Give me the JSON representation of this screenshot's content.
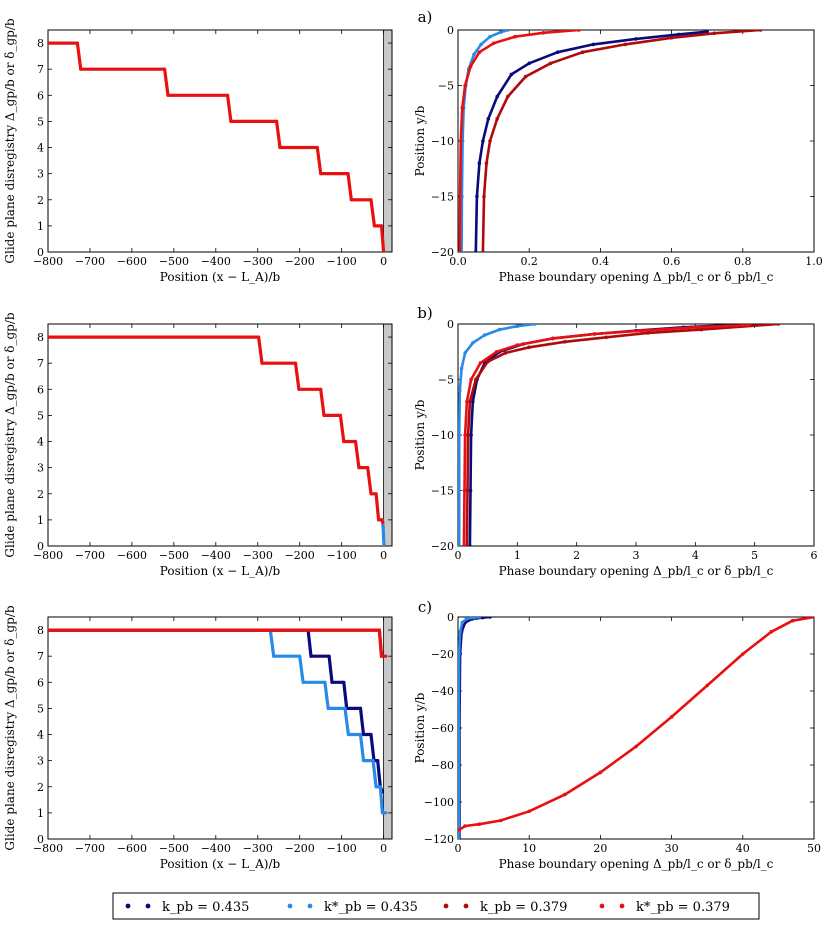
{
  "figure": {
    "panel_labels": [
      "a)",
      "b)",
      "c)"
    ],
    "left_xlabel": "Position (x − L_A)/b",
    "left_ylabel": "Glide plane disregistry Δ_gp/b or δ_gp/b",
    "right_xlabel": "Phase boundary opening Δ_pb/l_c or δ_pb/l_c",
    "right_ylabel": "Position y/b"
  },
  "legend": {
    "entries": [
      {
        "label": "k_pb = 0.435",
        "color": "#0a0a7a"
      },
      {
        "label": "k*_pb = 0.435",
        "color": "#2a8ae8"
      },
      {
        "label": "k_pb = 0.379",
        "color": "#b00a0a"
      },
      {
        "label": "k*_pb = 0.379",
        "color": "#e81010"
      }
    ]
  },
  "colors": {
    "k_pb_0435": "#0a0a7a",
    "kstar_pb_0435": "#2a8ae8",
    "k_pb_0379": "#b00a0a",
    "kstar_pb_0379": "#e81010",
    "shaded_region": "#c8c8c8"
  },
  "chart_data": [
    {
      "id": "a-left",
      "type": "line",
      "panel": "a)",
      "xlabel": "Position (x − L_A)/b",
      "ylabel": "Glide plane disregistry Δ_gp/b or δ_gp/b",
      "xlim": [
        -800,
        20
      ],
      "ylim": [
        0,
        8.5
      ],
      "xticks": [
        -800,
        -700,
        -600,
        -500,
        -400,
        -300,
        -200,
        -100,
        0
      ],
      "yticks": [
        0,
        1,
        2,
        3,
        4,
        5,
        6,
        7,
        8
      ],
      "shaded_x": [
        0,
        20
      ],
      "series": [
        {
          "color": "#e81010",
          "points": [
            [
              -800,
              8
            ],
            [
              -730,
              8
            ],
            [
              -722,
              7
            ],
            [
              -522,
              7
            ],
            [
              -514,
              6
            ],
            [
              -372,
              6
            ],
            [
              -364,
              5
            ],
            [
              -255,
              5
            ],
            [
              -247,
              4
            ],
            [
              -158,
              4
            ],
            [
              -150,
              3
            ],
            [
              -85,
              3
            ],
            [
              -77,
              2
            ],
            [
              -30,
              2
            ],
            [
              -22,
              1
            ],
            [
              -5,
              1
            ],
            [
              0,
              0
            ]
          ]
        }
      ]
    },
    {
      "id": "a-right",
      "type": "scatter",
      "panel": "a)",
      "xlabel": "Phase boundary opening Δ_pb/l_c or δ_pb/l_c",
      "ylabel": "Position y/b",
      "xlim": [
        0,
        1.0
      ],
      "ylim": [
        -20,
        0
      ],
      "xticks": [
        0.0,
        0.2,
        0.4,
        0.6,
        0.8,
        1.0
      ],
      "yticks": [
        0,
        -5,
        -10,
        -15,
        -20
      ],
      "series": [
        {
          "color": "#0a0a7a",
          "points": [
            [
              0.05,
              -20
            ],
            [
              0.053,
              -15
            ],
            [
              0.06,
              -12
            ],
            [
              0.07,
              -10
            ],
            [
              0.085,
              -8
            ],
            [
              0.11,
              -6
            ],
            [
              0.15,
              -4
            ],
            [
              0.2,
              -3
            ],
            [
              0.28,
              -2
            ],
            [
              0.38,
              -1.3
            ],
            [
              0.5,
              -0.8
            ],
            [
              0.62,
              -0.4
            ],
            [
              0.7,
              -0.15
            ]
          ]
        },
        {
          "color": "#2a8ae8",
          "points": [
            [
              0.01,
              -20
            ],
            [
              0.011,
              -15
            ],
            [
              0.013,
              -10
            ],
            [
              0.016,
              -7
            ],
            [
              0.022,
              -5
            ],
            [
              0.03,
              -3.5
            ],
            [
              0.045,
              -2.2
            ],
            [
              0.065,
              -1.3
            ],
            [
              0.09,
              -0.6
            ],
            [
              0.12,
              -0.2
            ],
            [
              0.14,
              0
            ]
          ]
        },
        {
          "color": "#b00a0a",
          "points": [
            [
              0.07,
              -20
            ],
            [
              0.073,
              -15
            ],
            [
              0.08,
              -12
            ],
            [
              0.09,
              -10
            ],
            [
              0.11,
              -8
            ],
            [
              0.14,
              -6
            ],
            [
              0.19,
              -4.2
            ],
            [
              0.26,
              -3
            ],
            [
              0.35,
              -2
            ],
            [
              0.47,
              -1.3
            ],
            [
              0.6,
              -0.7
            ],
            [
              0.72,
              -0.3
            ],
            [
              0.85,
              0
            ]
          ]
        },
        {
          "color": "#e81010",
          "points": [
            [
              0.005,
              -20
            ],
            [
              0.006,
              -15
            ],
            [
              0.008,
              -10
            ],
            [
              0.012,
              -7
            ],
            [
              0.02,
              -5
            ],
            [
              0.035,
              -3.3
            ],
            [
              0.06,
              -2
            ],
            [
              0.1,
              -1.2
            ],
            [
              0.16,
              -0.6
            ],
            [
              0.24,
              -0.25
            ],
            [
              0.34,
              0
            ]
          ]
        }
      ]
    },
    {
      "id": "b-left",
      "type": "line",
      "panel": "b)",
      "xlabel": "Position (x − L_A)/b",
      "ylabel": "Glide plane disregistry Δ_gp/b or δ_gp/b",
      "xlim": [
        -800,
        20
      ],
      "ylim": [
        0,
        8.5
      ],
      "xticks": [
        -800,
        -700,
        -600,
        -500,
        -400,
        -300,
        -200,
        -100,
        0
      ],
      "yticks": [
        0,
        1,
        2,
        3,
        4,
        5,
        6,
        7,
        8
      ],
      "shaded_x": [
        0,
        20
      ],
      "series": [
        {
          "color": "#2a8ae8",
          "points": [
            [
              -3,
              1
            ],
            [
              -1,
              0.7
            ],
            [
              0,
              0.3
            ],
            [
              1,
              0.05
            ]
          ]
        },
        {
          "color": "#e81010",
          "points": [
            [
              -800,
              8
            ],
            [
              -298,
              8
            ],
            [
              -290,
              7
            ],
            [
              -210,
              7
            ],
            [
              -202,
              6
            ],
            [
              -150,
              6
            ],
            [
              -142,
              5
            ],
            [
              -103,
              5
            ],
            [
              -95,
              4
            ],
            [
              -67,
              4
            ],
            [
              -59,
              3
            ],
            [
              -38,
              3
            ],
            [
              -30,
              2
            ],
            [
              -18,
              2
            ],
            [
              -12,
              1
            ],
            [
              -4,
              1
            ],
            [
              -2,
              0.9
            ]
          ]
        }
      ]
    },
    {
      "id": "b-right",
      "type": "scatter",
      "panel": "b)",
      "xlabel": "Phase boundary opening Δ_pb/l_c or δ_pb/l_c",
      "ylabel": "Position y/b",
      "xlim": [
        0,
        6
      ],
      "ylim": [
        -20,
        0
      ],
      "xticks": [
        0,
        1,
        2,
        3,
        4,
        5,
        6
      ],
      "yticks": [
        0,
        -5,
        -10,
        -15,
        -20
      ],
      "series": [
        {
          "color": "#0a0a7a",
          "points": [
            [
              0.2,
              -20
            ],
            [
              0.21,
              -15
            ],
            [
              0.22,
              -10
            ],
            [
              0.25,
              -7
            ],
            [
              0.32,
              -5
            ],
            [
              0.45,
              -3.5
            ],
            [
              0.7,
              -2.5
            ],
            [
              1.1,
              -1.8
            ],
            [
              1.6,
              -1.3
            ],
            [
              2.3,
              -0.9
            ],
            [
              3.0,
              -0.6
            ],
            [
              3.8,
              -0.3
            ],
            [
              4.6,
              -0.1
            ]
          ]
        },
        {
          "color": "#2a8ae8",
          "points": [
            [
              0.02,
              -20
            ],
            [
              0.02,
              -10
            ],
            [
              0.03,
              -6
            ],
            [
              0.06,
              -4
            ],
            [
              0.12,
              -2.6
            ],
            [
              0.25,
              -1.7
            ],
            [
              0.45,
              -1
            ],
            [
              0.7,
              -0.5
            ],
            [
              1.0,
              -0.2
            ],
            [
              1.3,
              0
            ]
          ]
        },
        {
          "color": "#b00a0a",
          "points": [
            [
              0.15,
              -20
            ],
            [
              0.16,
              -15
            ],
            [
              0.17,
              -10
            ],
            [
              0.2,
              -7
            ],
            [
              0.3,
              -5
            ],
            [
              0.5,
              -3.4
            ],
            [
              0.8,
              -2.6
            ],
            [
              1.2,
              -2.1
            ],
            [
              1.8,
              -1.6
            ],
            [
              2.5,
              -1.2
            ],
            [
              3.2,
              -0.8
            ],
            [
              4.1,
              -0.5
            ],
            [
              5.4,
              0
            ]
          ]
        },
        {
          "color": "#e81010",
          "points": [
            [
              0.1,
              -20
            ],
            [
              0.11,
              -15
            ],
            [
              0.12,
              -10
            ],
            [
              0.15,
              -7
            ],
            [
              0.22,
              -5
            ],
            [
              0.38,
              -3.5
            ],
            [
              0.65,
              -2.5
            ],
            [
              1.0,
              -1.9
            ],
            [
              1.6,
              -1.3
            ],
            [
              2.3,
              -0.9
            ],
            [
              3.1,
              -0.6
            ],
            [
              4.0,
              -0.3
            ],
            [
              4.9,
              -0.1
            ]
          ]
        }
      ]
    },
    {
      "id": "c-left",
      "type": "line",
      "panel": "c)",
      "xlabel": "Position (x − L_A)/b",
      "ylabel": "Glide plane disregistry Δ_gp/b or δ_gp/b",
      "xlim": [
        -800,
        20
      ],
      "ylim": [
        0,
        8.5
      ],
      "xticks": [
        -800,
        -700,
        -600,
        -500,
        -400,
        -300,
        -200,
        -100,
        0
      ],
      "yticks": [
        0,
        1,
        2,
        3,
        4,
        5,
        6,
        7,
        8
      ],
      "shaded_x": [
        0,
        20
      ],
      "series": [
        {
          "color": "#0a0a7a",
          "points": [
            [
              -800,
              8
            ],
            [
              -180,
              8
            ],
            [
              -173,
              7
            ],
            [
              -130,
              7
            ],
            [
              -123,
              6
            ],
            [
              -95,
              6
            ],
            [
              -88,
              5
            ],
            [
              -55,
              5
            ],
            [
              -48,
              4
            ],
            [
              -30,
              4
            ],
            [
              -23,
              3
            ],
            [
              -14,
              3
            ],
            [
              -8,
              2
            ],
            [
              -3,
              1.8
            ]
          ]
        },
        {
          "color": "#2a8ae8",
          "points": [
            [
              -270,
              8
            ],
            [
              -262,
              7
            ],
            [
              -200,
              7
            ],
            [
              -192,
              6
            ],
            [
              -140,
              6
            ],
            [
              -132,
              5
            ],
            [
              -92,
              5
            ],
            [
              -84,
              4
            ],
            [
              -55,
              4
            ],
            [
              -48,
              3
            ],
            [
              -25,
              3
            ],
            [
              -18,
              2
            ],
            [
              -8,
              2
            ],
            [
              -3,
              1
            ],
            [
              5,
              1
            ]
          ]
        },
        {
          "color": "#b00a0a",
          "points": [
            [
              -800,
              8
            ],
            [
              -10,
              8
            ],
            [
              -5,
              7
            ]
          ]
        },
        {
          "color": "#e81010",
          "points": [
            [
              -800,
              8
            ],
            [
              -10,
              8
            ],
            [
              -5,
              7
            ],
            [
              5,
              7
            ]
          ]
        }
      ]
    },
    {
      "id": "c-right",
      "type": "scatter",
      "panel": "c)",
      "xlabel": "Phase boundary opening Δ_pb/l_c or δ_pb/l_c",
      "ylabel": "Position y/b",
      "xlim": [
        0,
        50
      ],
      "ylim": [
        -120,
        0
      ],
      "xticks": [
        0,
        10,
        20,
        30,
        40,
        50
      ],
      "yticks": [
        0,
        -20,
        -40,
        -60,
        -80,
        -100,
        -120
      ],
      "series": [
        {
          "color": "#0a0a7a",
          "points": [
            [
              0.2,
              -120
            ],
            [
              0.2,
              -60
            ],
            [
              0.3,
              -20
            ],
            [
              0.5,
              -8
            ],
            [
              1,
              -3
            ],
            [
              2,
              -1
            ],
            [
              3.5,
              -0.3
            ],
            [
              4.5,
              0
            ]
          ]
        },
        {
          "color": "#2a8ae8",
          "points": [
            [
              0.1,
              -120
            ],
            [
              0.1,
              -60
            ],
            [
              0.15,
              -20
            ],
            [
              0.3,
              -8
            ],
            [
              0.6,
              -3
            ],
            [
              1.2,
              -1
            ],
            [
              2.2,
              -0.3
            ],
            [
              3.0,
              0
            ]
          ]
        },
        {
          "color": "#e81010",
          "points": [
            [
              0.2,
              -115
            ],
            [
              1,
              -113
            ],
            [
              3,
              -112
            ],
            [
              6,
              -110
            ],
            [
              10,
              -105
            ],
            [
              15,
              -96
            ],
            [
              20,
              -84
            ],
            [
              25,
              -70
            ],
            [
              30,
              -54
            ],
            [
              35,
              -37
            ],
            [
              40,
              -20
            ],
            [
              44,
              -8
            ],
            [
              47,
              -2
            ],
            [
              50,
              0
            ]
          ]
        }
      ]
    }
  ]
}
